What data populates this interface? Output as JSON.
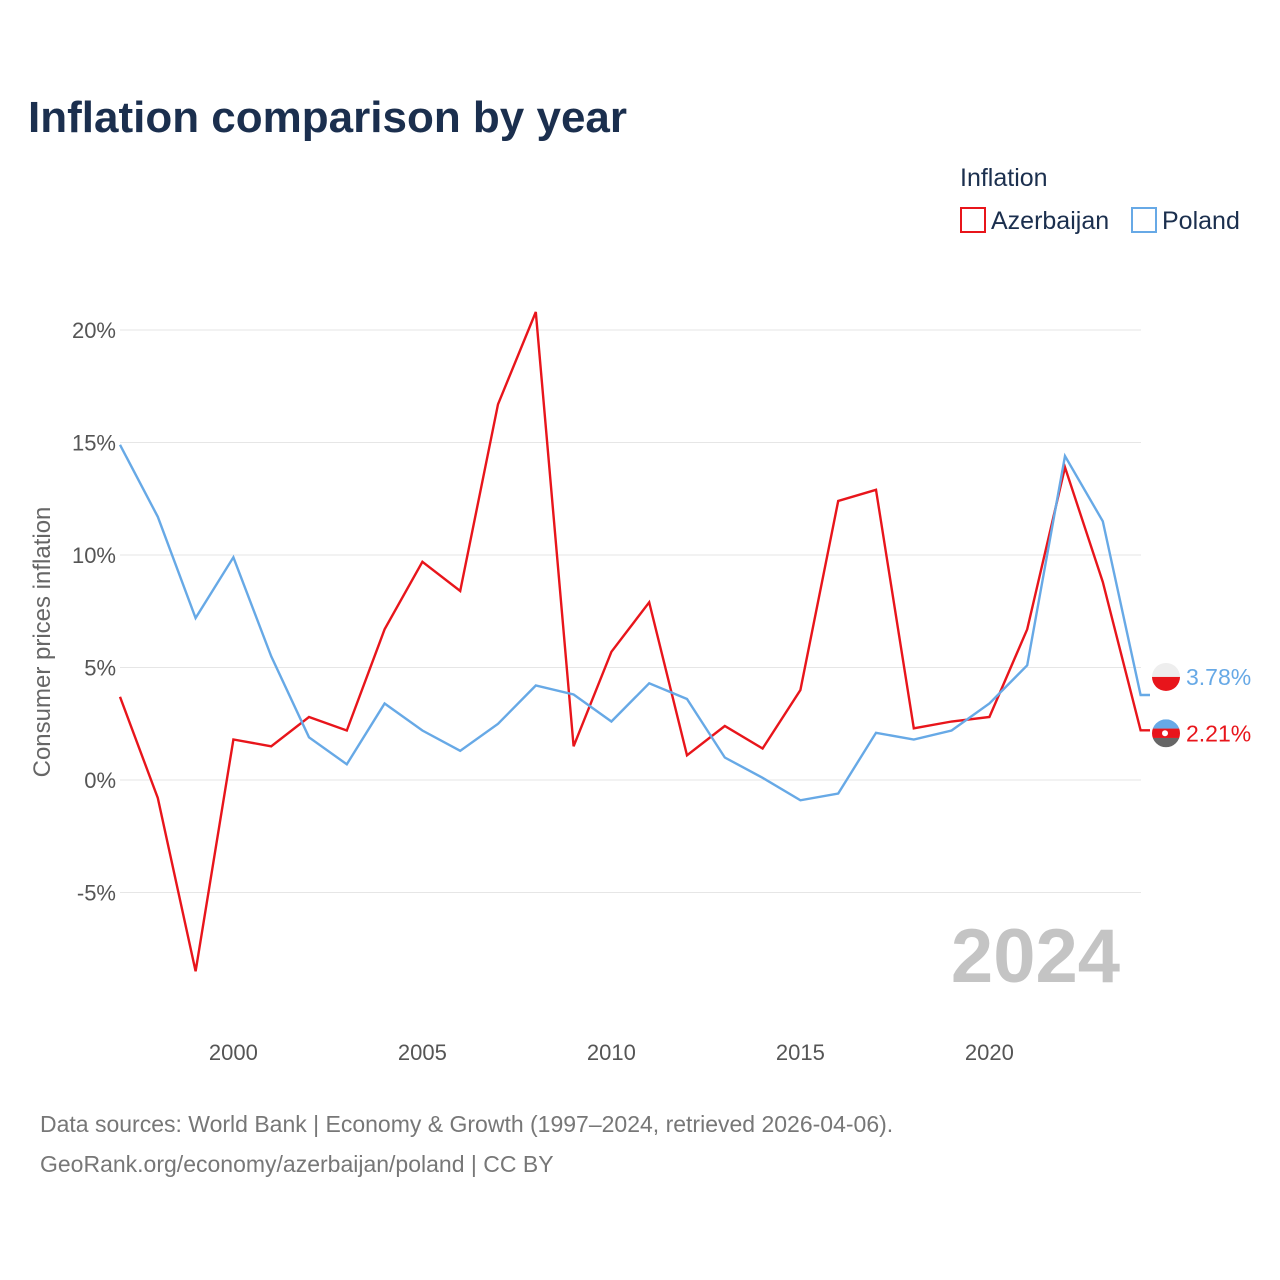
{
  "chart_data": {
    "type": "line",
    "title": "Inflation comparison by year",
    "xlabel": "",
    "ylabel": "Consumer prices inflation",
    "legend_title": "Inflation",
    "legend_position": "top-right",
    "xlim": [
      1997,
      2024
    ],
    "ylim": [
      -10,
      22
    ],
    "x_ticks": [
      2000,
      2005,
      2010,
      2015,
      2020
    ],
    "y_ticks": [
      -5,
      0,
      5,
      10,
      15,
      20
    ],
    "y_tick_labels": [
      "-5%",
      "0%",
      "5%",
      "10%",
      "15%",
      "20%"
    ],
    "x_tick_labels": [
      "2000",
      "2005",
      "2010",
      "2015",
      "2020"
    ],
    "grid": true,
    "x": [
      1997,
      1998,
      1999,
      2000,
      2001,
      2002,
      2003,
      2004,
      2005,
      2006,
      2007,
      2008,
      2009,
      2010,
      2011,
      2012,
      2013,
      2014,
      2015,
      2016,
      2017,
      2018,
      2019,
      2020,
      2021,
      2022,
      2023,
      2024
    ],
    "series": [
      {
        "name": "Azerbaijan",
        "color": "#e8151b",
        "values": [
          3.7,
          -0.8,
          -8.5,
          1.8,
          1.5,
          2.8,
          2.2,
          6.7,
          9.7,
          8.4,
          16.7,
          20.8,
          1.5,
          5.7,
          7.9,
          1.1,
          2.4,
          1.4,
          4.0,
          12.4,
          12.9,
          2.3,
          2.6,
          2.8,
          6.7,
          13.9,
          8.8,
          2.21
        ],
        "end_label": "2.21%"
      },
      {
        "name": "Poland",
        "color": "#67a9e6",
        "values": [
          14.9,
          11.7,
          7.2,
          9.9,
          5.5,
          1.9,
          0.7,
          3.4,
          2.2,
          1.3,
          2.5,
          4.2,
          3.8,
          2.6,
          4.3,
          3.6,
          1.0,
          0.1,
          -0.9,
          -0.6,
          2.1,
          1.8,
          2.2,
          3.4,
          5.1,
          14.4,
          11.5,
          3.78
        ],
        "end_label": "3.78%"
      }
    ],
    "year_watermark": "2024"
  },
  "footer": {
    "source_line": "Data sources: World Bank | Economy & Growth (1997–2024, retrieved 2026-04-06).",
    "credit_line": "GeoRank.org/economy/azerbaijan/poland | CC BY"
  }
}
